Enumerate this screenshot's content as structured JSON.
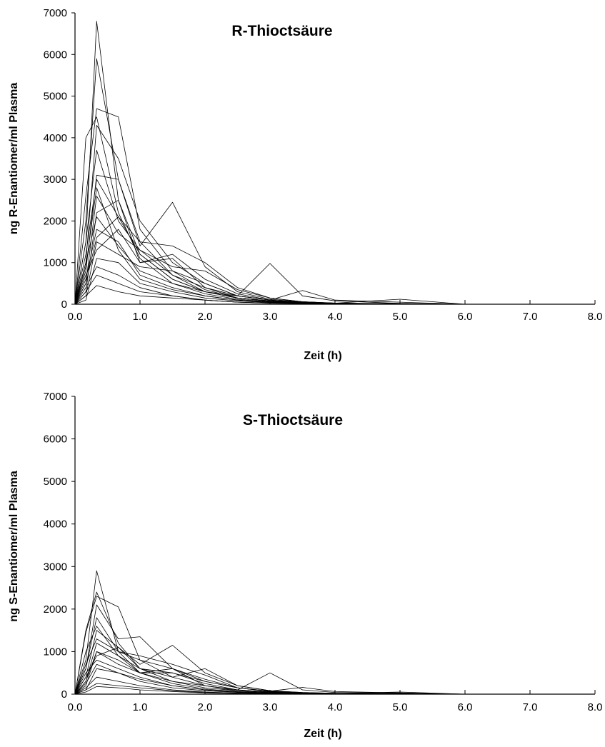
{
  "chart_data": [
    {
      "type": "line",
      "title": "R-Thioctsäure",
      "xlabel": "Zeit (h)",
      "ylabel": "ng R-Enantiomer/ml Plasma",
      "xlim": [
        0,
        8
      ],
      "ylim": [
        0,
        7000
      ],
      "x_ticks": [
        "0.0",
        "1.0",
        "2.0",
        "3.0",
        "4.0",
        "5.0",
        "6.0",
        "7.0",
        "8.0"
      ],
      "y_ticks": [
        "0",
        "1000",
        "2000",
        "3000",
        "4000",
        "5000",
        "6000",
        "7000"
      ],
      "grid": false,
      "legend": "none",
      "x": [
        0,
        0.167,
        0.333,
        0.667,
        1.0,
        1.5,
        2.0,
        2.5,
        3.0,
        3.5,
        4.0,
        5.0,
        6.0,
        8.0
      ],
      "series": [
        {
          "values": [
            0,
            1500,
            6800,
            2500,
            1200,
            600,
            300,
            150,
            80,
            40,
            20,
            10,
            0,
            0
          ]
        },
        {
          "values": [
            0,
            2000,
            5900,
            3000,
            1500,
            700,
            400,
            200,
            100,
            50,
            25,
            10,
            0,
            0
          ]
        },
        {
          "values": [
            0,
            4000,
            4500,
            2200,
            1100,
            500,
            250,
            120,
            60,
            30,
            15,
            5,
            0,
            0
          ]
        },
        {
          "values": [
            0,
            2600,
            4700,
            4500,
            1800,
            800,
            350,
            150,
            70,
            30,
            15,
            5,
            0,
            0
          ]
        },
        {
          "values": [
            0,
            1000,
            4300,
            3500,
            2000,
            1000,
            500,
            200,
            100,
            50,
            20,
            10,
            0,
            0
          ]
        },
        {
          "values": [
            0,
            800,
            3100,
            3000,
            1400,
            2450,
            900,
            300,
            120,
            60,
            30,
            10,
            0,
            0
          ]
        },
        {
          "values": [
            0,
            1200,
            3000,
            2100,
            1500,
            1400,
            1000,
            400,
            150,
            60,
            25,
            10,
            0,
            0
          ]
        },
        {
          "values": [
            0,
            500,
            2600,
            1700,
            1300,
            700,
            300,
            200,
            980,
            200,
            80,
            20,
            0,
            0
          ]
        },
        {
          "values": [
            0,
            300,
            2200,
            2500,
            1000,
            1200,
            600,
            250,
            100,
            330,
            100,
            50,
            0,
            0
          ]
        },
        {
          "values": [
            0,
            600,
            1800,
            1500,
            700,
            400,
            200,
            100,
            50,
            25,
            10,
            5,
            0,
            0
          ]
        },
        {
          "values": [
            0,
            200,
            1500,
            1200,
            900,
            800,
            500,
            200,
            100,
            50,
            20,
            10,
            0,
            0
          ]
        },
        {
          "values": [
            0,
            100,
            1100,
            1000,
            500,
            300,
            150,
            80,
            40,
            20,
            10,
            5,
            0,
            0
          ]
        },
        {
          "values": [
            0,
            700,
            1300,
            1800,
            1000,
            1100,
            400,
            150,
            80,
            40,
            20,
            10,
            0,
            0
          ]
        },
        {
          "values": [
            0,
            400,
            900,
            700,
            400,
            200,
            100,
            50,
            30,
            20,
            10,
            5,
            0,
            0
          ]
        },
        {
          "values": [
            0,
            300,
            700,
            500,
            300,
            200,
            100,
            50,
            25,
            15,
            10,
            5,
            0,
            0
          ]
        },
        {
          "values": [
            0,
            1000,
            2100,
            1400,
            800,
            500,
            300,
            150,
            80,
            40,
            20,
            10,
            0,
            0
          ]
        },
        {
          "values": [
            0,
            200,
            450,
            300,
            200,
            150,
            100,
            50,
            25,
            15,
            10,
            5,
            0,
            0
          ]
        },
        {
          "values": [
            0,
            900,
            2800,
            1300,
            600,
            350,
            200,
            100,
            50,
            25,
            15,
            5,
            0,
            0
          ]
        },
        {
          "values": [
            0,
            500,
            1600,
            2100,
            1200,
            600,
            300,
            150,
            70,
            30,
            15,
            5,
            0,
            0
          ]
        },
        {
          "values": [
            0,
            1500,
            3700,
            2000,
            1300,
            900,
            800,
            350,
            150,
            60,
            25,
            120,
            0,
            0
          ]
        }
      ]
    },
    {
      "type": "line",
      "title": "S-Thioctsäure",
      "xlabel": "Zeit (h)",
      "ylabel": "ng S-Enantiomer/ml Plasma",
      "xlim": [
        0,
        8
      ],
      "ylim": [
        0,
        7000
      ],
      "x_ticks": [
        "0.0",
        "1.0",
        "2.0",
        "3.0",
        "4.0",
        "5.0",
        "6.0",
        "7.0",
        "8.0"
      ],
      "y_ticks": [
        "0",
        "1000",
        "2000",
        "3000",
        "4000",
        "5000",
        "6000",
        "7000"
      ],
      "grid": false,
      "legend": "none",
      "x": [
        0,
        0.167,
        0.333,
        0.667,
        1.0,
        1.5,
        2.0,
        2.5,
        3.0,
        3.5,
        4.0,
        5.0,
        6.0,
        8.0
      ],
      "series": [
        {
          "values": [
            0,
            800,
            2900,
            1000,
            500,
            250,
            120,
            60,
            30,
            15,
            8,
            4,
            0,
            0
          ]
        },
        {
          "values": [
            0,
            1500,
            2400,
            1200,
            600,
            300,
            150,
            80,
            40,
            20,
            10,
            5,
            0,
            0
          ]
        },
        {
          "values": [
            0,
            1450,
            2300,
            2050,
            800,
            400,
            200,
            100,
            50,
            25,
            10,
            5,
            0,
            0
          ]
        },
        {
          "values": [
            0,
            600,
            2100,
            1300,
            1350,
            600,
            300,
            150,
            60,
            30,
            15,
            5,
            0,
            0
          ]
        },
        {
          "values": [
            0,
            400,
            1500,
            1100,
            700,
            1150,
            500,
            200,
            80,
            40,
            20,
            10,
            0,
            0
          ]
        },
        {
          "values": [
            0,
            300,
            1200,
            900,
            600,
            500,
            250,
            100,
            500,
            100,
            40,
            20,
            0,
            0
          ]
        },
        {
          "values": [
            0,
            200,
            1000,
            800,
            500,
            600,
            350,
            150,
            70,
            160,
            60,
            30,
            0,
            0
          ]
        },
        {
          "values": [
            0,
            500,
            800,
            600,
            400,
            200,
            100,
            50,
            25,
            15,
            8,
            4,
            0,
            0
          ]
        },
        {
          "values": [
            0,
            100,
            600,
            500,
            300,
            150,
            80,
            40,
            20,
            10,
            5,
            2,
            0,
            0
          ]
        },
        {
          "values": [
            0,
            300,
            1000,
            700,
            500,
            500,
            300,
            150,
            70,
            30,
            15,
            5,
            0,
            0
          ]
        },
        {
          "values": [
            0,
            150,
            400,
            300,
            200,
            100,
            50,
            25,
            15,
            10,
            5,
            2,
            0,
            0
          ]
        },
        {
          "values": [
            0,
            700,
            1300,
            1000,
            800,
            600,
            200,
            80,
            40,
            20,
            10,
            5,
            0,
            0
          ]
        },
        {
          "values": [
            0,
            100,
            250,
            200,
            150,
            80,
            40,
            20,
            10,
            5,
            3,
            1,
            0,
            0
          ]
        },
        {
          "values": [
            0,
            1000,
            1600,
            900,
            500,
            300,
            200,
            100,
            50,
            25,
            10,
            5,
            0,
            0
          ]
        },
        {
          "values": [
            0,
            400,
            900,
            1100,
            600,
            400,
            600,
            200,
            80,
            40,
            20,
            10,
            0,
            0
          ]
        },
        {
          "values": [
            0,
            250,
            700,
            500,
            350,
            200,
            100,
            50,
            25,
            15,
            8,
            4,
            0,
            0
          ]
        },
        {
          "values": [
            0,
            50,
            180,
            150,
            100,
            60,
            30,
            15,
            8,
            4,
            2,
            1,
            0,
            0
          ]
        },
        {
          "values": [
            0,
            600,
            1800,
            1000,
            900,
            700,
            450,
            150,
            60,
            30,
            15,
            50,
            0,
            0
          ]
        }
      ]
    }
  ]
}
